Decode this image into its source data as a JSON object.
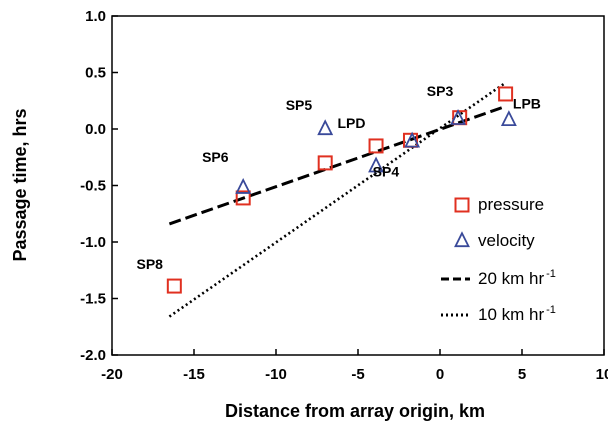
{
  "chart_data": {
    "type": "scatter",
    "xlabel": "Distance from array origin, km",
    "ylabel": "Passage time, hrs",
    "xlim": [
      -20,
      10
    ],
    "ylim": [
      -2.0,
      1.0
    ],
    "xticks": [
      "-20",
      "-15",
      "-10",
      "-5",
      "0",
      "5",
      "10"
    ],
    "yticks": [
      "-2.0",
      "-1.5",
      "-1.0",
      "-0.5",
      "0.0",
      "0.5",
      "1.0"
    ],
    "grid": false,
    "legend_position": "right",
    "series": [
      {
        "name": "pressure",
        "marker": "square",
        "color": "#e03020",
        "points": [
          {
            "x": -16.2,
            "y": -1.39
          },
          {
            "x": -12.0,
            "y": -0.61
          },
          {
            "x": -7.0,
            "y": -0.3
          },
          {
            "x": -3.9,
            "y": -0.15
          },
          {
            "x": -1.8,
            "y": -0.1
          },
          {
            "x": 1.2,
            "y": 0.1
          },
          {
            "x": 4.0,
            "y": 0.31
          }
        ]
      },
      {
        "name": "velocity",
        "marker": "triangle",
        "color": "#3a4a9a",
        "points": [
          {
            "x": -12.0,
            "y": -0.52
          },
          {
            "x": -7.0,
            "y": 0.0
          },
          {
            "x": -3.9,
            "y": -0.33
          },
          {
            "x": -1.7,
            "y": -0.11
          },
          {
            "x": 1.1,
            "y": 0.09
          },
          {
            "x": 4.2,
            "y": 0.08
          }
        ]
      },
      {
        "name": "20 km hr",
        "name_sup": "-1",
        "style": "dashed",
        "color": "#000000",
        "line": [
          {
            "x": -16.5,
            "y": -0.84
          },
          {
            "x": 4.0,
            "y": 0.2
          }
        ]
      },
      {
        "name": "10 km hr",
        "name_sup": "-1",
        "style": "dotted",
        "color": "#000000",
        "line": [
          {
            "x": -16.5,
            "y": -1.66
          },
          {
            "x": 4.0,
            "y": 0.41
          }
        ]
      }
    ],
    "annotations": [
      {
        "text": "SP8",
        "x": -17.7,
        "y": -1.24
      },
      {
        "text": "SP6",
        "x": -13.7,
        "y": -0.29
      },
      {
        "text": "SP5",
        "x": -8.6,
        "y": 0.17
      },
      {
        "text": "LPD",
        "x": -5.4,
        "y": 0.01
      },
      {
        "text": "SP4",
        "x": -3.3,
        "y": -0.42
      },
      {
        "text": "SP3",
        "x": 0.0,
        "y": 0.29
      },
      {
        "text": "LPB",
        "x": 5.3,
        "y": 0.18
      }
    ]
  }
}
